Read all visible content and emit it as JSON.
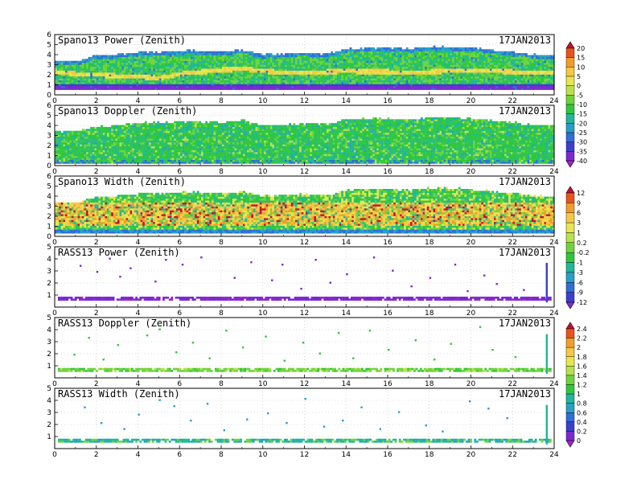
{
  "chart_data": [
    {
      "type": "heatmap",
      "title": "Spano13 Power (Zenith)",
      "date": "17JAN2013",
      "xlim": [
        0,
        24
      ],
      "ylim": [
        0,
        6
      ],
      "xticks": [
        0,
        2,
        4,
        6,
        8,
        10,
        12,
        14,
        16,
        18,
        20,
        22,
        24
      ],
      "yticks": [
        0,
        1,
        2,
        3,
        4,
        5,
        6
      ],
      "colorbar": "power",
      "grid": true,
      "x_hours": [
        0,
        1,
        2,
        3,
        4,
        5,
        6,
        7,
        8,
        9,
        10,
        11,
        12,
        13,
        14,
        15,
        16,
        17,
        18,
        19,
        20,
        21,
        22,
        23,
        24
      ],
      "top_km": [
        3.3,
        3.3,
        3.8,
        3.9,
        4.2,
        4.2,
        4.3,
        4.3,
        4.2,
        4.4,
        3.9,
        4.0,
        4.1,
        4.0,
        4.5,
        4.6,
        4.6,
        4.5,
        4.7,
        4.7,
        4.6,
        4.4,
        4.2,
        3.9,
        3.9
      ],
      "base_km": 0.5,
      "band_km": [
        2.2,
        2.0,
        1.9,
        1.8,
        1.7,
        1.6,
        2.0,
        2.2,
        2.4,
        2.5,
        2.3,
        2.1,
        2.1,
        2.2,
        2.3,
        2.2,
        2.2,
        2.1,
        2.2,
        2.3,
        2.3,
        2.3,
        2.2,
        2.1,
        2.1
      ]
    },
    {
      "type": "heatmap",
      "title": "Spano13 Doppler (Zenith)",
      "date": "17JAN2013",
      "xlim": [
        0,
        24
      ],
      "ylim": [
        0,
        6
      ],
      "xticks": [
        0,
        2,
        4,
        6,
        8,
        10,
        12,
        14,
        16,
        18,
        20,
        22,
        24
      ],
      "yticks": [
        0,
        1,
        2,
        3,
        4,
        5,
        6
      ],
      "colorbar": "power",
      "grid": true,
      "x_hours": [
        0,
        1,
        2,
        3,
        4,
        5,
        6,
        7,
        8,
        9,
        10,
        11,
        12,
        13,
        14,
        15,
        16,
        17,
        18,
        19,
        20,
        21,
        22,
        23,
        24
      ],
      "top_km": [
        3.3,
        3.3,
        3.8,
        3.9,
        4.2,
        4.2,
        4.3,
        4.3,
        4.2,
        4.4,
        3.9,
        4.0,
        4.1,
        4.0,
        4.5,
        4.6,
        4.6,
        4.5,
        4.7,
        4.7,
        4.6,
        4.4,
        4.2,
        3.9,
        3.9
      ],
      "base_km": 0.2
    },
    {
      "type": "heatmap",
      "title": "Spano13 Width (Zenith)",
      "date": "17JAN2013",
      "xlim": [
        0,
        24
      ],
      "ylim": [
        0,
        6
      ],
      "xticks": [
        0,
        2,
        4,
        6,
        8,
        10,
        12,
        14,
        16,
        18,
        20,
        22,
        24
      ],
      "yticks": [
        0,
        1,
        2,
        3,
        4,
        5,
        6
      ],
      "colorbar": "width",
      "grid": true,
      "x_hours": [
        0,
        1,
        2,
        3,
        4,
        5,
        6,
        7,
        8,
        9,
        10,
        11,
        12,
        13,
        14,
        15,
        16,
        17,
        18,
        19,
        20,
        21,
        22,
        23,
        24
      ],
      "top_km": [
        3.3,
        3.3,
        3.8,
        3.9,
        4.2,
        4.2,
        4.3,
        4.3,
        4.2,
        4.4,
        3.9,
        4.0,
        4.1,
        4.0,
        4.5,
        4.6,
        4.6,
        4.5,
        4.7,
        4.7,
        4.6,
        4.4,
        4.2,
        3.9,
        3.9
      ],
      "base_km": 0.3
    },
    {
      "type": "heatmap",
      "title": "RASS13 Power (Zenith)",
      "date": "17JAN2013",
      "xlim": [
        0,
        24
      ],
      "ylim": [
        0,
        5
      ],
      "xticks": [
        0,
        2,
        4,
        6,
        8,
        10,
        12,
        14,
        16,
        18,
        20,
        22,
        24
      ],
      "yticks": [
        1,
        2,
        3,
        4,
        5
      ],
      "colorbar": "width",
      "grid": true,
      "layer_km": [
        0.55,
        0.75
      ],
      "scatter": [
        [
          1.2,
          3.5
        ],
        [
          2.0,
          3.0
        ],
        [
          2.6,
          4.1
        ],
        [
          3.1,
          2.6
        ],
        [
          3.6,
          3.3
        ],
        [
          4.8,
          2.2
        ],
        [
          5.3,
          4.0
        ],
        [
          6.1,
          3.6
        ],
        [
          7.0,
          4.2
        ],
        [
          8.6,
          2.5
        ],
        [
          9.4,
          3.8
        ],
        [
          10.4,
          2.3
        ],
        [
          10.9,
          3.6
        ],
        [
          11.8,
          1.6
        ],
        [
          12.5,
          4.0
        ],
        [
          13.2,
          2.1
        ],
        [
          14.0,
          2.8
        ],
        [
          15.3,
          4.2
        ],
        [
          16.2,
          3.1
        ],
        [
          17.1,
          1.8
        ],
        [
          18.0,
          2.5
        ],
        [
          19.2,
          3.6
        ],
        [
          19.8,
          1.4
        ],
        [
          20.6,
          2.7
        ],
        [
          21.2,
          2.0
        ],
        [
          22.5,
          1.5
        ],
        [
          23.6,
          3.6
        ]
      ]
    },
    {
      "type": "heatmap",
      "title": "RASS13 Doppler (Zenith)",
      "date": "17JAN2013",
      "xlim": [
        0,
        24
      ],
      "ylim": [
        0,
        5
      ],
      "xticks": [
        0,
        2,
        4,
        6,
        8,
        10,
        12,
        14,
        16,
        18,
        20,
        22,
        24
      ],
      "yticks": [
        1,
        2,
        3,
        4,
        5
      ],
      "colorbar": "doppler",
      "grid": true,
      "layer_km": [
        0.5,
        0.7
      ],
      "scatter": [
        [
          0.9,
          2.0
        ],
        [
          1.6,
          3.4
        ],
        [
          2.3,
          1.6
        ],
        [
          3.0,
          2.8
        ],
        [
          4.4,
          3.6
        ],
        [
          5.0,
          4.1
        ],
        [
          5.8,
          2.2
        ],
        [
          6.6,
          3.0
        ],
        [
          7.4,
          1.7
        ],
        [
          8.2,
          4.0
        ],
        [
          9.0,
          2.6
        ],
        [
          10.1,
          3.5
        ],
        [
          11.0,
          1.5
        ],
        [
          11.9,
          3.0
        ],
        [
          12.7,
          2.1
        ],
        [
          13.6,
          3.8
        ],
        [
          14.3,
          1.7
        ],
        [
          15.1,
          4.0
        ],
        [
          16.0,
          2.4
        ],
        [
          17.3,
          3.2
        ],
        [
          18.2,
          1.6
        ],
        [
          19.0,
          2.9
        ],
        [
          20.4,
          4.3
        ],
        [
          21.0,
          2.4
        ],
        [
          22.1,
          1.8
        ],
        [
          23.6,
          3.5
        ]
      ]
    },
    {
      "type": "heatmap",
      "title": "RASS13 Width (Zenith)",
      "date": "17JAN2013",
      "xlim": [
        0,
        24
      ],
      "ylim": [
        0,
        5
      ],
      "xticks": [
        0,
        2,
        4,
        6,
        8,
        10,
        12,
        14,
        16,
        18,
        20,
        22,
        24
      ],
      "yticks": [
        1,
        2,
        3,
        4,
        5
      ],
      "colorbar": "doppler",
      "grid": true,
      "layer_km": [
        0.5,
        0.7
      ],
      "scatter": [
        [
          1.4,
          3.5
        ],
        [
          2.2,
          2.2
        ],
        [
          3.3,
          1.7
        ],
        [
          4.0,
          2.9
        ],
        [
          5.0,
          4.1
        ],
        [
          5.7,
          3.6
        ],
        [
          6.5,
          2.4
        ],
        [
          7.3,
          3.8
        ],
        [
          8.1,
          1.6
        ],
        [
          9.2,
          2.5
        ],
        [
          10.2,
          3.0
        ],
        [
          11.1,
          2.2
        ],
        [
          12.0,
          4.2
        ],
        [
          12.9,
          1.9
        ],
        [
          13.8,
          2.4
        ],
        [
          14.7,
          3.5
        ],
        [
          15.6,
          1.7
        ],
        [
          16.5,
          3.1
        ],
        [
          17.8,
          2.0
        ],
        [
          18.6,
          1.5
        ],
        [
          19.9,
          4.0
        ],
        [
          20.8,
          3.4
        ],
        [
          21.7,
          2.6
        ],
        [
          23.6,
          3.6
        ]
      ]
    }
  ],
  "colorbars": {
    "power": {
      "labels": [
        "20",
        "15",
        "10",
        "5",
        "0",
        "-5",
        "-10",
        "-15",
        "-20",
        "-25",
        "-30",
        "-35",
        "-40"
      ],
      "colors": [
        "#c8102e",
        "#e8541c",
        "#f39c2a",
        "#f6c842",
        "#e8e64c",
        "#b7e24a",
        "#6fd43a",
        "#2fc83b",
        "#1fb89a",
        "#27a0c8",
        "#2f6fd6",
        "#3b3fd0",
        "#7a2ad0",
        "#a522c8"
      ]
    },
    "width": {
      "labels": [
        "12",
        "9",
        "6",
        "3",
        "1",
        "0.2",
        "-0.2",
        "-1",
        "-3",
        "-6",
        "-9",
        "-12"
      ],
      "colors": [
        "#c8102e",
        "#e8541c",
        "#f39c2a",
        "#f6c842",
        "#e8e64c",
        "#b7e24a",
        "#6fd43a",
        "#2fc83b",
        "#1fb89a",
        "#27a0c8",
        "#2f6fd6",
        "#3b3fd0",
        "#7a2ad0"
      ]
    },
    "doppler": {
      "labels": [
        "2.4",
        "2.2",
        "2",
        "1.8",
        "1.6",
        "1.4",
        "1.2",
        "1",
        "0.8",
        "0.6",
        "0.4",
        "0.2",
        "0"
      ],
      "colors": [
        "#c8102e",
        "#e8541c",
        "#f39c2a",
        "#f6c842",
        "#e8e64c",
        "#b7e24a",
        "#6fd43a",
        "#2fc83b",
        "#1fb89a",
        "#27a0c8",
        "#2f6fd6",
        "#3b3fd0",
        "#7a2ad0",
        "#a522c8"
      ]
    }
  }
}
